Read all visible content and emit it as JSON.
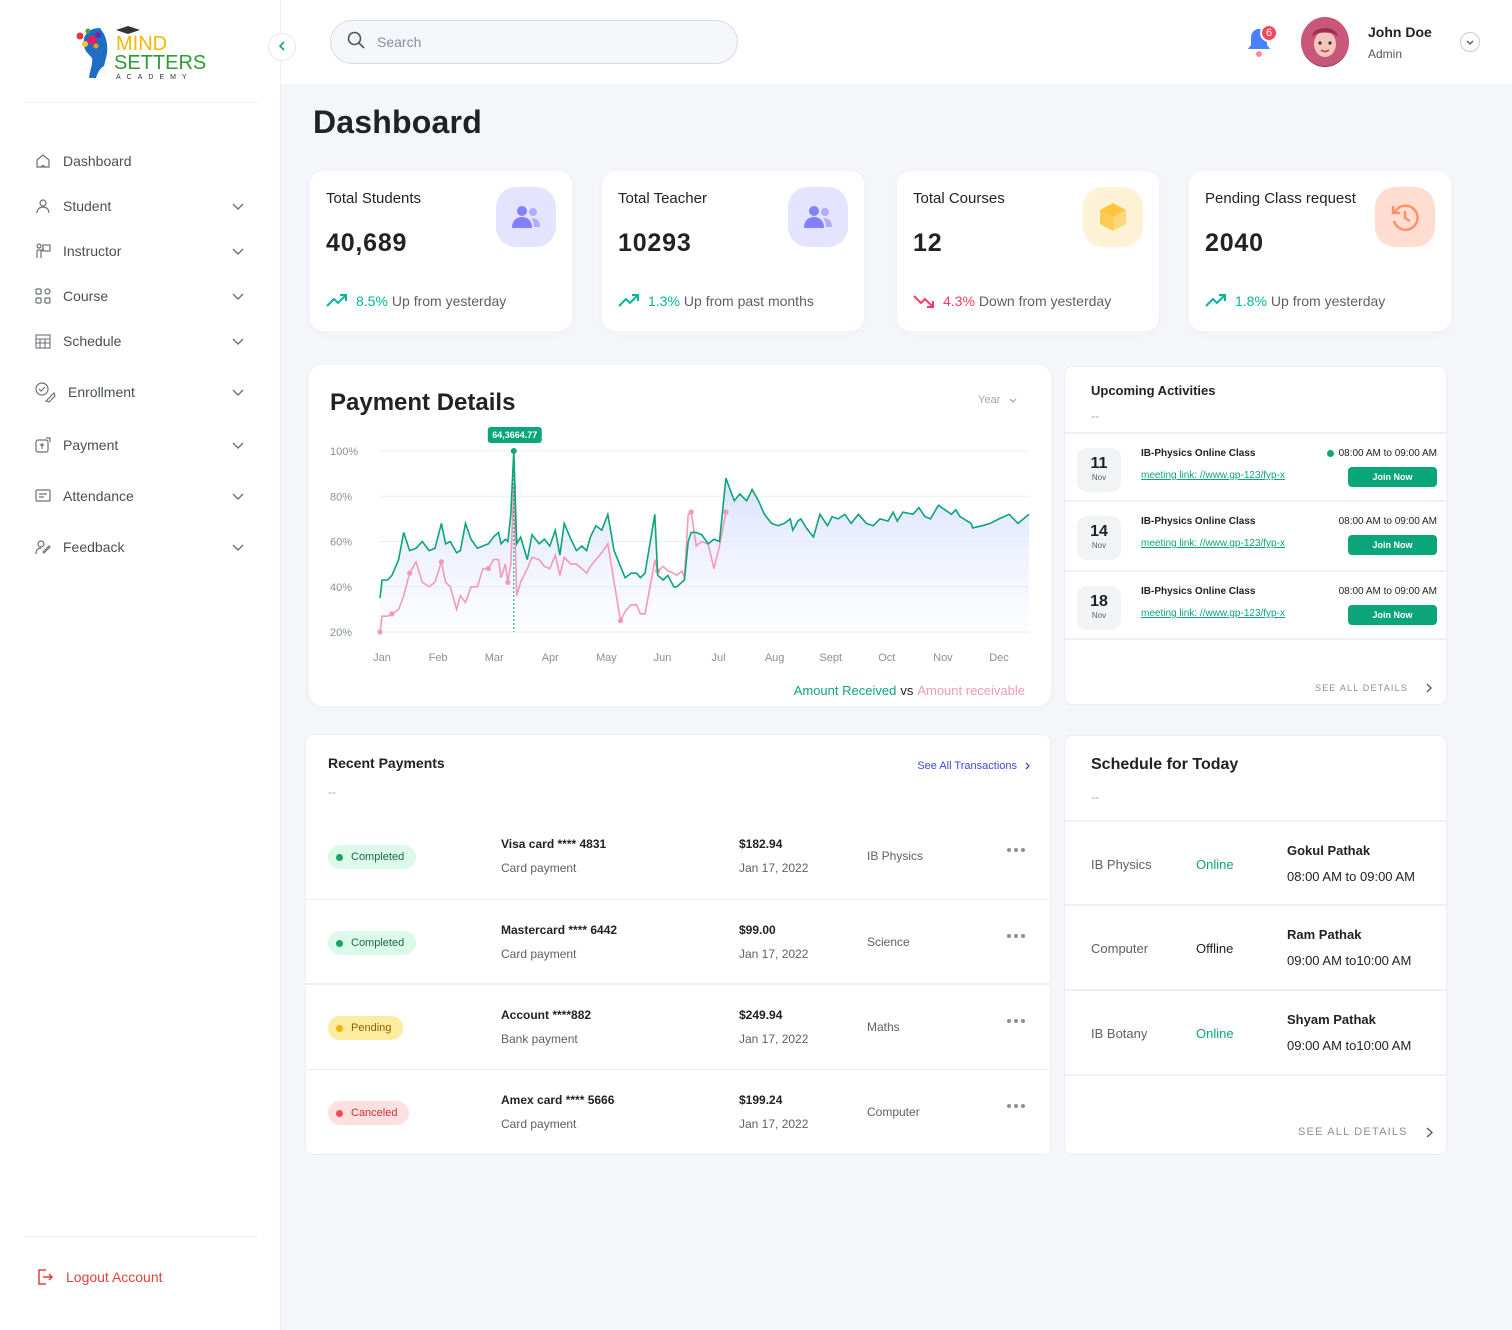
{
  "brand": {
    "line1": "MIND",
    "line2": "SETTERS",
    "line3": "ACADEMY"
  },
  "sidebar": {
    "items": [
      {
        "label": "Dashboard",
        "icon": "home-icon",
        "expandable": false
      },
      {
        "label": "Student",
        "icon": "student-icon",
        "expandable": true
      },
      {
        "label": "Instructor",
        "icon": "instructor-icon",
        "expandable": true
      },
      {
        "label": "Course",
        "icon": "grid-icon",
        "expandable": true
      },
      {
        "label": "Schedule",
        "icon": "calendar-icon",
        "expandable": true
      },
      {
        "label": "Enrollment",
        "icon": "enrollment-icon",
        "expandable": true
      },
      {
        "label": "Payment",
        "icon": "payment-icon",
        "expandable": true
      },
      {
        "label": "Attendance",
        "icon": "attendance-icon",
        "expandable": true
      },
      {
        "label": "Feedback",
        "icon": "feedback-icon",
        "expandable": true
      }
    ],
    "logout_label": "Logout Account"
  },
  "header": {
    "search_placeholder": "Search",
    "notification_count": "6",
    "user": {
      "name": "John Doe",
      "role": "Admin"
    }
  },
  "page_title": "Dashboard",
  "stats": [
    {
      "label": "Total Students",
      "value": "40,689",
      "pct": "8.5%",
      "trend_text": "Up from yesterday",
      "direction": "up",
      "icon": "users-icon",
      "icon_bg": "#e5e4ff",
      "icon_color": "#8280ff"
    },
    {
      "label": "Total Teacher",
      "value": "10293",
      "pct": "1.3%",
      "trend_text": "Up from past months",
      "direction": "up",
      "icon": "users-icon",
      "icon_bg": "#e5e4ff",
      "icon_color": "#8280ff"
    },
    {
      "label": "Total Courses",
      "value": "12",
      "pct": "4.3%",
      "trend_text": "Down from yesterday",
      "direction": "down",
      "icon": "box-icon",
      "icon_bg": "#fef2d6",
      "icon_color": "#fec53d"
    },
    {
      "label": "Pending Class request",
      "value": "2040",
      "pct": "1.8%",
      "trend_text": "Up from yesterday",
      "direction": "up",
      "icon": "history-icon",
      "icon_bg": "#ffded1",
      "icon_color": "#ff9066"
    }
  ],
  "payment_details": {
    "title": "Payment Details",
    "period": "Year",
    "legend": {
      "received": "Amount Received",
      "vs": "vs",
      "receivable": "Amount receivable"
    }
  },
  "chart_data": {
    "type": "area",
    "title": "Payment Details",
    "x_labels": [
      "Jan",
      "Feb",
      "Mar",
      "Apr",
      "May",
      "Jun",
      "Jul",
      "Aug",
      "Sept",
      "Oct",
      "Nov",
      "Dec"
    ],
    "y_ticks": [
      "100%",
      "80%",
      "60%",
      "40%",
      "20%"
    ],
    "ylim": [
      20,
      100
    ],
    "grid": true,
    "legend_position": "bottom-right",
    "series": [
      {
        "name": "Amount Received",
        "color": "#0ba57a",
        "points": [
          [
            0,
            35
          ],
          [
            0.05,
            43
          ],
          [
            0.18,
            43
          ],
          [
            0.28,
            45
          ],
          [
            0.44,
            52
          ],
          [
            0.56,
            64
          ],
          [
            0.7,
            56
          ],
          [
            0.85,
            57
          ],
          [
            1.0,
            60
          ],
          [
            1.16,
            56
          ],
          [
            1.3,
            57
          ],
          [
            1.45,
            68
          ],
          [
            1.55,
            59
          ],
          [
            1.66,
            60
          ],
          [
            1.81,
            55
          ],
          [
            1.9,
            56
          ],
          [
            2.02,
            68
          ],
          [
            2.15,
            61
          ],
          [
            2.3,
            57
          ],
          [
            2.43,
            58
          ],
          [
            2.56,
            59
          ],
          [
            2.68,
            62
          ],
          [
            2.8,
            64
          ],
          [
            2.86,
            59
          ],
          [
            2.96,
            61
          ],
          [
            3.02,
            60
          ],
          [
            3.09,
            72
          ],
          [
            3.16,
            100
          ],
          [
            3.23,
            59
          ],
          [
            3.32,
            62
          ],
          [
            3.48,
            52
          ],
          [
            3.59,
            63
          ],
          [
            3.76,
            59
          ],
          [
            3.88,
            61
          ],
          [
            4.01,
            58
          ],
          [
            4.14,
            65
          ],
          [
            4.25,
            54
          ],
          [
            4.35,
            68
          ],
          [
            4.51,
            61
          ],
          [
            4.64,
            56
          ],
          [
            4.77,
            58
          ],
          [
            4.88,
            56
          ],
          [
            4.97,
            62
          ],
          [
            5.1,
            67
          ],
          [
            5.24,
            65
          ],
          [
            5.38,
            72
          ],
          [
            5.53,
            56
          ],
          [
            5.68,
            49
          ],
          [
            5.79,
            44
          ],
          [
            5.93,
            46
          ],
          [
            6.06,
            46
          ],
          [
            6.15,
            44
          ],
          [
            6.26,
            46
          ],
          [
            6.44,
            66
          ],
          [
            6.49,
            72
          ],
          [
            6.56,
            45
          ],
          [
            6.69,
            43
          ],
          [
            6.8,
            45
          ],
          [
            6.94,
            40
          ],
          [
            7.01,
            40
          ],
          [
            7.13,
            42
          ],
          [
            7.19,
            43
          ],
          [
            7.28,
            60
          ],
          [
            7.35,
            64
          ],
          [
            7.47,
            64
          ],
          [
            7.6,
            63
          ],
          [
            7.75,
            59
          ],
          [
            7.89,
            61
          ],
          [
            8.02,
            60
          ],
          [
            8.17,
            88
          ],
          [
            8.37,
            78
          ],
          [
            8.5,
            81
          ],
          [
            8.66,
            78
          ],
          [
            8.79,
            83
          ],
          [
            8.94,
            78
          ],
          [
            9.08,
            72
          ],
          [
            9.25,
            68
          ],
          [
            9.4,
            67
          ],
          [
            9.55,
            68
          ],
          [
            9.69,
            70
          ],
          [
            9.75,
            65
          ],
          [
            9.87,
            69
          ],
          [
            9.94,
            70
          ],
          [
            10.07,
            66
          ],
          [
            10.24,
            62
          ],
          [
            10.39,
            72
          ],
          [
            10.57,
            67
          ],
          [
            10.68,
            71
          ],
          [
            10.82,
            70
          ],
          [
            10.98,
            72
          ],
          [
            11.13,
            68
          ],
          [
            11.3,
            72
          ],
          [
            11.49,
            68
          ],
          [
            11.65,
            67
          ],
          [
            11.81,
            70
          ],
          [
            12.0,
            69
          ],
          [
            12.12,
            73
          ],
          [
            12.22,
            69
          ],
          [
            12.35,
            73
          ],
          [
            12.59,
            72
          ],
          [
            12.73,
            75
          ],
          [
            12.87,
            71
          ],
          [
            13.0,
            70
          ],
          [
            13.19,
            76
          ],
          [
            13.5,
            72
          ],
          [
            13.6,
            74
          ],
          [
            13.7,
            71
          ],
          [
            13.96,
            68
          ],
          [
            14.0,
            66
          ],
          [
            14.23,
            67
          ],
          [
            14.41,
            68
          ],
          [
            14.62,
            70
          ],
          [
            14.86,
            72
          ],
          [
            15.07,
            68
          ],
          [
            15.33,
            72
          ]
        ]
      },
      {
        "name": "Amount receivable",
        "color": "#f29ab6",
        "points": [
          [
            0,
            20
          ],
          [
            0.05,
            27
          ],
          [
            0.18,
            27
          ],
          [
            0.28,
            28
          ],
          [
            0.44,
            30
          ],
          [
            0.56,
            36
          ],
          [
            0.7,
            46
          ],
          [
            0.85,
            51
          ],
          [
            1.0,
            42
          ],
          [
            1.16,
            40
          ],
          [
            1.3,
            42
          ],
          [
            1.45,
            51
          ],
          [
            1.55,
            42
          ],
          [
            1.66,
            40
          ],
          [
            1.81,
            30
          ],
          [
            1.9,
            36
          ],
          [
            2.02,
            33
          ],
          [
            2.15,
            40
          ],
          [
            2.3,
            40
          ],
          [
            2.43,
            48
          ],
          [
            2.56,
            48
          ],
          [
            2.68,
            52
          ],
          [
            2.8,
            52
          ],
          [
            2.86,
            44
          ],
          [
            2.96,
            50
          ],
          [
            3.02,
            42
          ],
          [
            3.09,
            50
          ],
          [
            3.16,
            84
          ],
          [
            3.23,
            36
          ],
          [
            3.32,
            42
          ],
          [
            3.48,
            48
          ],
          [
            3.59,
            53
          ],
          [
            3.76,
            52
          ],
          [
            3.88,
            49
          ],
          [
            4.01,
            48
          ],
          [
            4.14,
            54
          ],
          [
            4.25,
            45
          ],
          [
            4.35,
            53
          ],
          [
            4.51,
            50
          ],
          [
            4.64,
            50
          ],
          [
            4.77,
            48
          ],
          [
            4.88,
            46
          ],
          [
            4.97,
            49
          ],
          [
            5.1,
            52
          ],
          [
            5.24,
            55
          ],
          [
            5.38,
            59
          ],
          [
            5.53,
            42
          ],
          [
            5.68,
            25
          ],
          [
            5.79,
            29
          ],
          [
            5.93,
            32
          ],
          [
            6.06,
            32
          ],
          [
            6.15,
            28
          ],
          [
            6.26,
            28
          ],
          [
            6.44,
            46
          ],
          [
            6.49,
            52
          ],
          [
            6.56,
            47
          ],
          [
            6.69,
            49
          ],
          [
            6.8,
            47
          ],
          [
            6.94,
            46
          ],
          [
            7.01,
            45
          ],
          [
            7.13,
            47
          ],
          [
            7.19,
            44
          ],
          [
            7.28,
            72
          ],
          [
            7.35,
            73
          ],
          [
            7.47,
            58
          ],
          [
            7.6,
            60
          ],
          [
            7.75,
            59
          ],
          [
            7.89,
            48
          ],
          [
            8.02,
            58
          ],
          [
            8.17,
            73
          ]
        ]
      }
    ],
    "peak_label": "64,3664.77"
  },
  "upcoming": {
    "title": "Upcoming Activities",
    "subtitle": "--",
    "items": [
      {
        "day": "11",
        "month": "Nov",
        "name": "IB-Physics Online Class",
        "link": "meeting link: //www.gp-123/fyp-x",
        "time": "08:00 AM to 09:00 AM",
        "live": true,
        "button": "Join Now"
      },
      {
        "day": "14",
        "month": "Nov",
        "name": "IB-Physics Online Class",
        "link": "meeting link: //www.gp-123/fyp-x",
        "time": "08:00 AM to 09:00 AM",
        "live": false,
        "button": "Join Now"
      },
      {
        "day": "18",
        "month": "Nov",
        "name": "IB-Physics Online Class",
        "link": "meeting link: //www.gp-123/fyp-x",
        "time": "08:00 AM to 09:00 AM",
        "live": false,
        "button": "Join Now"
      }
    ],
    "see_all": "SEE ALL DETAILS"
  },
  "recent_payments": {
    "title": "Recent Payments",
    "subtitle": "--",
    "see_all": "See All Transactions",
    "rows": [
      {
        "status": "Completed",
        "status_key": "completed",
        "card": "Visa card **** 4831",
        "method": "Card payment",
        "amount": "$182.94",
        "date": "Jan 17, 2022",
        "subject": "IB Physics"
      },
      {
        "status": "Completed",
        "status_key": "completed",
        "card": "Mastercard **** 6442",
        "method": "Card payment",
        "amount": "$99.00",
        "date": "Jan 17, 2022",
        "subject": "Science"
      },
      {
        "status": "Pending",
        "status_key": "pending",
        "card": "Account ****882",
        "method": "Bank payment",
        "amount": "$249.94",
        "date": "Jan 17, 2022",
        "subject": "Maths"
      },
      {
        "status": "Canceled",
        "status_key": "canceled",
        "card": "Amex card **** 5666",
        "method": "Card payment",
        "amount": "$199.24",
        "date": "Jan 17, 2022",
        "subject": "Computer"
      }
    ]
  },
  "schedule": {
    "title": "Schedule for Today",
    "subtitle": "--",
    "rows": [
      {
        "subject": "IB Physics",
        "mode": "Online",
        "mode_key": "online",
        "teacher": "Gokul Pathak",
        "time": "08:00 AM to 09:00 AM"
      },
      {
        "subject": "Computer",
        "mode": "Offline",
        "mode_key": "offline",
        "teacher": "Ram Pathak",
        "time": "09:00 AM to10:00 AM"
      },
      {
        "subject": "IB Botany",
        "mode": "Online",
        "mode_key": "online",
        "teacher": "Shyam Pathak",
        "time": "09:00 AM to10:00 AM"
      }
    ],
    "see_all": "SEE ALL DETAILS"
  }
}
